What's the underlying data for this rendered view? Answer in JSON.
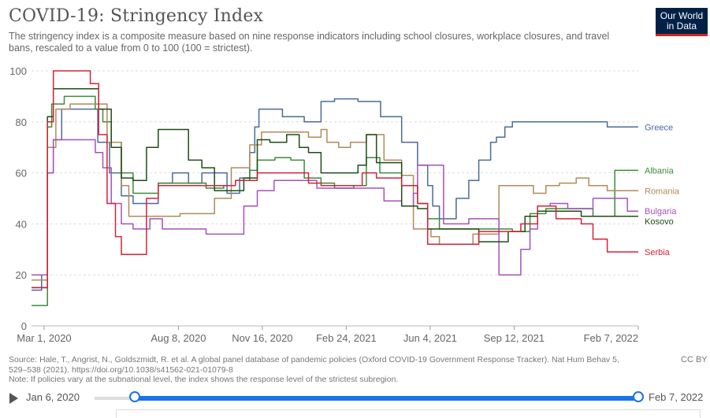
{
  "header": {
    "title": "COVID-19: Stringency Index",
    "subtitle": "The stringency index is a composite measure based on nine response indicators including school closures, workplace closures, and travel bans, rescaled to a value from 0 to 100 (100 = strictest).",
    "logo_line1": "Our World",
    "logo_line2": "in Data"
  },
  "footer": {
    "source": "Source: Hale, T., Angrist, N., Goldszmidt, R. et al. A global panel database of pandemic policies (Oxford COVID-19 Government Response Tracker). Nat Hum Behav 5, 529–538 (2021). https://doi.org/10.1038/s41562-021-01079-8",
    "note": "Note: If policies vary at the subnational level, the index shows the response level of the strictest subregion.",
    "license": "CC BY"
  },
  "timeline": {
    "start_label": "Jan 6, 2020",
    "end_label": "Feb 7, 2022",
    "start_fraction": 0.074,
    "end_fraction": 1.0
  },
  "colors": {
    "Greece": "#4c6a9c",
    "Albania": "#3c8a3c",
    "Romania": "#b08a5a",
    "Bulgaria": "#a652ba",
    "Kosovo": "#1f4d16",
    "Serbia": "#d2233a"
  },
  "chart_data": {
    "type": "line",
    "title": "COVID-19: Stringency Index",
    "xlabel": "",
    "ylabel": "",
    "ylim": [
      0,
      100
    ],
    "yticks": [
      0,
      20,
      40,
      60,
      80,
      100
    ],
    "xlim": [
      "2020-02-15",
      "2022-02-07"
    ],
    "xticks": [
      {
        "date": "2020-03-01",
        "label": "Mar 1, 2020"
      },
      {
        "date": "2020-08-08",
        "label": "Aug 8, 2020"
      },
      {
        "date": "2020-11-16",
        "label": "Nov 16, 2020"
      },
      {
        "date": "2021-02-24",
        "label": "Feb 24, 2021"
      },
      {
        "date": "2021-06-04",
        "label": "Jun 4, 2021"
      },
      {
        "date": "2021-09-12",
        "label": "Sep 12, 2021"
      },
      {
        "date": "2022-02-07",
        "label": "Feb 7, 2022"
      }
    ],
    "grid": true,
    "legend": "right (end labels)",
    "series": [
      {
        "name": "Greece",
        "points": [
          [
            "2020-02-15",
            14
          ],
          [
            "2020-02-27",
            20
          ],
          [
            "2020-03-05",
            60
          ],
          [
            "2020-03-12",
            73
          ],
          [
            "2020-03-22",
            85
          ],
          [
            "2020-04-15",
            85
          ],
          [
            "2020-05-04",
            72
          ],
          [
            "2020-05-18",
            60
          ],
          [
            "2020-06-01",
            51
          ],
          [
            "2020-06-15",
            48
          ],
          [
            "2020-07-01",
            48
          ],
          [
            "2020-07-15",
            56
          ],
          [
            "2020-08-01",
            60
          ],
          [
            "2020-08-20",
            56
          ],
          [
            "2020-09-05",
            60
          ],
          [
            "2020-09-20",
            60
          ],
          [
            "2020-10-05",
            52
          ],
          [
            "2020-10-20",
            58
          ],
          [
            "2020-11-01",
            68
          ],
          [
            "2020-11-07",
            78
          ],
          [
            "2020-11-12",
            85
          ],
          [
            "2020-12-10",
            82
          ],
          [
            "2021-01-05",
            80
          ],
          [
            "2021-01-25",
            88
          ],
          [
            "2021-02-10",
            89
          ],
          [
            "2021-03-10",
            88
          ],
          [
            "2021-04-06",
            82
          ],
          [
            "2021-05-01",
            72
          ],
          [
            "2021-05-20",
            63
          ],
          [
            "2021-06-01",
            55
          ],
          [
            "2021-06-07",
            47
          ],
          [
            "2021-06-15",
            42
          ],
          [
            "2021-07-05",
            50
          ],
          [
            "2021-07-20",
            57
          ],
          [
            "2021-08-01",
            65
          ],
          [
            "2021-08-15",
            72
          ],
          [
            "2021-08-22",
            74
          ],
          [
            "2021-09-01",
            78
          ],
          [
            "2021-09-10",
            80
          ],
          [
            "2021-11-10",
            80
          ],
          [
            "2021-12-10",
            80
          ],
          [
            "2022-01-01",
            78
          ],
          [
            "2022-02-07",
            78
          ]
        ]
      },
      {
        "name": "Albania",
        "points": [
          [
            "2020-02-15",
            8
          ],
          [
            "2020-02-27",
            8
          ],
          [
            "2020-03-05",
            78
          ],
          [
            "2020-03-10",
            87
          ],
          [
            "2020-03-25",
            90
          ],
          [
            "2020-04-20",
            90
          ],
          [
            "2020-05-01",
            85
          ],
          [
            "2020-05-10",
            80
          ],
          [
            "2020-05-20",
            72
          ],
          [
            "2020-06-01",
            60
          ],
          [
            "2020-06-15",
            52
          ],
          [
            "2020-07-01",
            52
          ],
          [
            "2020-07-15",
            56
          ],
          [
            "2020-08-01",
            56
          ],
          [
            "2020-08-20",
            56
          ],
          [
            "2020-09-10",
            54
          ],
          [
            "2020-10-01",
            55
          ],
          [
            "2020-10-15",
            57
          ],
          [
            "2020-11-01",
            61
          ],
          [
            "2020-11-10",
            65
          ],
          [
            "2020-12-01",
            66
          ],
          [
            "2020-12-20",
            65
          ],
          [
            "2021-01-05",
            58
          ],
          [
            "2021-01-25",
            56
          ],
          [
            "2021-02-10",
            54
          ],
          [
            "2021-03-05",
            55
          ],
          [
            "2021-03-20",
            66
          ],
          [
            "2021-04-05",
            60
          ],
          [
            "2021-05-01",
            55
          ],
          [
            "2021-05-20",
            48
          ],
          [
            "2021-06-01",
            42
          ],
          [
            "2021-06-15",
            38
          ],
          [
            "2021-07-15",
            38
          ],
          [
            "2021-08-15",
            38
          ],
          [
            "2021-09-10",
            37
          ],
          [
            "2021-10-01",
            44
          ],
          [
            "2021-10-20",
            46
          ],
          [
            "2021-11-15",
            46
          ],
          [
            "2021-12-15",
            43
          ],
          [
            "2022-01-05",
            43
          ],
          [
            "2022-01-10",
            61
          ],
          [
            "2022-02-07",
            61
          ]
        ]
      },
      {
        "name": "Romania",
        "points": [
          [
            "2020-02-15",
            18
          ],
          [
            "2020-02-27",
            18
          ],
          [
            "2020-03-05",
            70
          ],
          [
            "2020-03-15",
            85
          ],
          [
            "2020-04-01",
            87
          ],
          [
            "2020-04-20",
            87
          ],
          [
            "2020-05-15",
            72
          ],
          [
            "2020-06-01",
            55
          ],
          [
            "2020-06-10",
            43
          ],
          [
            "2020-07-01",
            43
          ],
          [
            "2020-07-20",
            43
          ],
          [
            "2020-08-10",
            44
          ],
          [
            "2020-08-25",
            44
          ],
          [
            "2020-09-20",
            50
          ],
          [
            "2020-10-10",
            62
          ],
          [
            "2020-11-01",
            71
          ],
          [
            "2020-11-15",
            76
          ],
          [
            "2020-12-20",
            76
          ],
          [
            "2021-01-10",
            74
          ],
          [
            "2021-01-25",
            77
          ],
          [
            "2021-02-01",
            72
          ],
          [
            "2021-02-15",
            70
          ],
          [
            "2021-03-01",
            72
          ],
          [
            "2021-03-20",
            75
          ],
          [
            "2021-04-10",
            65
          ],
          [
            "2021-05-01",
            59
          ],
          [
            "2021-05-15",
            38
          ],
          [
            "2021-06-05",
            35
          ],
          [
            "2021-06-15",
            32
          ],
          [
            "2021-07-05",
            32
          ],
          [
            "2021-07-25",
            36
          ],
          [
            "2021-08-15",
            36
          ],
          [
            "2021-08-25",
            55
          ],
          [
            "2021-09-20",
            55
          ],
          [
            "2021-10-05",
            52
          ],
          [
            "2021-10-20",
            55
          ],
          [
            "2021-11-05",
            56
          ],
          [
            "2021-11-25",
            58
          ],
          [
            "2021-12-10",
            55
          ],
          [
            "2022-01-01",
            53
          ],
          [
            "2022-02-07",
            53
          ]
        ]
      },
      {
        "name": "Bulgaria",
        "points": [
          [
            "2020-02-15",
            20
          ],
          [
            "2020-02-27",
            20
          ],
          [
            "2020-03-05",
            60
          ],
          [
            "2020-03-12",
            73
          ],
          [
            "2020-04-15",
            73
          ],
          [
            "2020-05-01",
            68
          ],
          [
            "2020-05-10",
            62
          ],
          [
            "2020-05-20",
            48
          ],
          [
            "2020-06-01",
            40
          ],
          [
            "2020-06-15",
            38
          ],
          [
            "2020-07-05",
            42
          ],
          [
            "2020-07-20",
            38
          ],
          [
            "2020-08-15",
            38
          ],
          [
            "2020-09-10",
            36
          ],
          [
            "2020-10-10",
            36
          ],
          [
            "2020-10-25",
            47
          ],
          [
            "2020-11-10",
            53
          ],
          [
            "2020-11-30",
            57
          ],
          [
            "2020-12-20",
            57
          ],
          [
            "2021-01-20",
            54
          ],
          [
            "2021-02-20",
            54
          ],
          [
            "2021-03-20",
            54
          ],
          [
            "2021-04-10",
            49
          ],
          [
            "2021-05-01",
            47
          ],
          [
            "2021-05-15",
            52
          ],
          [
            "2021-05-20",
            63
          ],
          [
            "2021-06-10",
            63
          ],
          [
            "2021-06-20",
            40
          ],
          [
            "2021-07-10",
            40
          ],
          [
            "2021-07-20",
            42
          ],
          [
            "2021-08-10",
            42
          ],
          [
            "2021-08-25",
            20
          ],
          [
            "2021-09-15",
            20
          ],
          [
            "2021-09-20",
            30
          ],
          [
            "2021-10-01",
            38
          ],
          [
            "2021-10-10",
            47
          ],
          [
            "2021-10-25",
            48
          ],
          [
            "2021-11-15",
            46
          ],
          [
            "2021-12-15",
            50
          ],
          [
            "2022-01-10",
            50
          ],
          [
            "2022-01-25",
            45
          ],
          [
            "2022-02-07",
            45
          ]
        ]
      },
      {
        "name": "Kosovo",
        "points": [
          [
            "2020-02-15",
            15
          ],
          [
            "2020-02-27",
            15
          ],
          [
            "2020-03-05",
            82
          ],
          [
            "2020-03-12",
            93
          ],
          [
            "2020-04-20",
            93
          ],
          [
            "2020-05-05",
            85
          ],
          [
            "2020-05-20",
            70
          ],
          [
            "2020-06-01",
            58
          ],
          [
            "2020-06-15",
            57
          ],
          [
            "2020-07-01",
            70
          ],
          [
            "2020-07-15",
            77
          ],
          [
            "2020-08-10",
            77
          ],
          [
            "2020-08-20",
            65
          ],
          [
            "2020-09-05",
            62
          ],
          [
            "2020-09-20",
            53
          ],
          [
            "2020-10-10",
            53
          ],
          [
            "2020-10-25",
            58
          ],
          [
            "2020-11-10",
            73
          ],
          [
            "2020-11-25",
            72
          ],
          [
            "2020-12-15",
            75
          ],
          [
            "2020-12-30",
            70
          ],
          [
            "2021-01-10",
            68
          ],
          [
            "2021-01-25",
            60
          ],
          [
            "2021-02-20",
            60
          ],
          [
            "2021-03-10",
            63
          ],
          [
            "2021-03-20",
            75
          ],
          [
            "2021-04-01",
            64
          ],
          [
            "2021-05-01",
            47
          ],
          [
            "2021-05-20",
            46
          ],
          [
            "2021-06-01",
            38
          ],
          [
            "2021-07-01",
            38
          ],
          [
            "2021-08-01",
            33
          ],
          [
            "2021-08-20",
            33
          ],
          [
            "2021-09-05",
            37
          ],
          [
            "2021-09-25",
            43
          ],
          [
            "2021-10-10",
            45
          ],
          [
            "2021-11-10",
            45
          ],
          [
            "2021-12-01",
            43
          ],
          [
            "2022-01-05",
            43
          ],
          [
            "2022-02-07",
            43
          ]
        ]
      },
      {
        "name": "Serbia",
        "points": [
          [
            "2020-02-15",
            15
          ],
          [
            "2020-02-27",
            15
          ],
          [
            "2020-03-05",
            80
          ],
          [
            "2020-03-12",
            100
          ],
          [
            "2020-04-15",
            100
          ],
          [
            "2020-04-25",
            95
          ],
          [
            "2020-05-05",
            75
          ],
          [
            "2020-05-15",
            48
          ],
          [
            "2020-05-25",
            35
          ],
          [
            "2020-06-01",
            28
          ],
          [
            "2020-06-20",
            28
          ],
          [
            "2020-07-01",
            50
          ],
          [
            "2020-07-15",
            55
          ],
          [
            "2020-07-30",
            55
          ],
          [
            "2020-08-20",
            55
          ],
          [
            "2020-09-15",
            55
          ],
          [
            "2020-10-15",
            57
          ],
          [
            "2020-11-01",
            57
          ],
          [
            "2020-11-10",
            60
          ],
          [
            "2020-12-10",
            60
          ],
          [
            "2021-01-10",
            56
          ],
          [
            "2021-01-25",
            55
          ],
          [
            "2021-02-20",
            55
          ],
          [
            "2021-03-15",
            60
          ],
          [
            "2021-04-01",
            58
          ],
          [
            "2021-05-01",
            55
          ],
          [
            "2021-05-20",
            48
          ],
          [
            "2021-06-01",
            32
          ],
          [
            "2021-06-10",
            32
          ],
          [
            "2021-07-01",
            32
          ],
          [
            "2021-08-01",
            37
          ],
          [
            "2021-09-01",
            37
          ],
          [
            "2021-09-20",
            40
          ],
          [
            "2021-10-10",
            47
          ],
          [
            "2021-11-01",
            42
          ],
          [
            "2021-12-01",
            40
          ],
          [
            "2021-12-15",
            34
          ],
          [
            "2022-01-01",
            29
          ],
          [
            "2022-02-07",
            29
          ]
        ]
      }
    ]
  }
}
